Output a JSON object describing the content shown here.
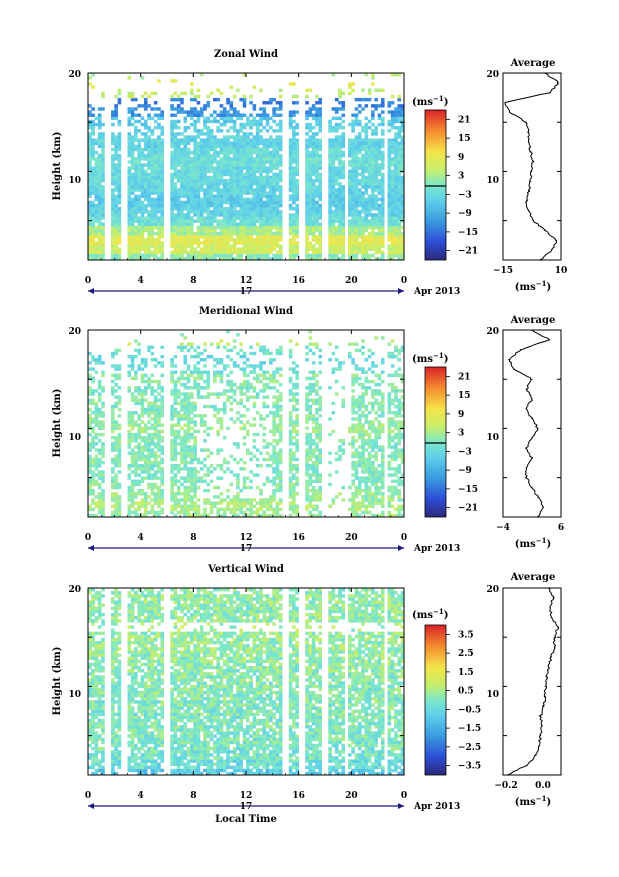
{
  "chart_data": [
    {
      "type": "heatmap",
      "title": "Zonal Wind",
      "ylabel": "Height (km)",
      "ylim": [
        1,
        20
      ],
      "xlim": [
        0,
        24
      ],
      "x_ticks": [
        "0",
        "4",
        "8",
        "12",
        "16",
        "20",
        "0"
      ],
      "y_ticks": [
        "20",
        "10"
      ],
      "day_label": "17",
      "date_label": "Apr 2013",
      "colorbar": {
        "unit": "(ms",
        "unit_exp": "−1",
        "unit_close": ")",
        "ticks": [
          "21",
          "15",
          "9",
          "3",
          "−3",
          "−9",
          "−15",
          "−21"
        ],
        "range": [
          -24,
          24
        ]
      },
      "average_profile": {
        "title": "Average",
        "xlabel": "(ms",
        "x_ticks": [
          "−15",
          "10"
        ],
        "xlim": [
          -15,
          10
        ],
        "y_ticks": [
          "20",
          "10"
        ],
        "height_km": [
          1,
          2,
          3,
          4,
          5,
          6,
          7,
          8,
          9,
          10,
          11,
          12,
          13,
          14,
          15,
          16,
          17,
          18,
          19,
          20
        ],
        "values": [
          1,
          6,
          8,
          3,
          -2,
          -4,
          -5,
          -4,
          -3,
          -3,
          -2,
          -3,
          -4,
          -4,
          -5,
          -12,
          -14,
          5,
          9,
          3
        ]
      }
    },
    {
      "type": "heatmap",
      "title": "Meridional Wind",
      "ylabel": "Height (km)",
      "ylim": [
        1,
        20
      ],
      "xlim": [
        0,
        24
      ],
      "x_ticks": [
        "0",
        "4",
        "8",
        "12",
        "16",
        "20",
        "0"
      ],
      "y_ticks": [
        "20",
        "10"
      ],
      "day_label": "17",
      "date_label": "Apr 2013",
      "colorbar": {
        "unit": "(ms",
        "unit_exp": "−1",
        "unit_close": ")",
        "ticks": [
          "21",
          "15",
          "9",
          "3",
          "−3",
          "−9",
          "−15",
          "−21"
        ],
        "range": [
          -24,
          24
        ]
      },
      "average_profile": {
        "title": "Average",
        "xlabel": "(ms",
        "x_ticks": [
          "−4",
          "6"
        ],
        "xlim": [
          -4,
          6
        ],
        "y_ticks": [
          "20",
          "10"
        ],
        "height_km": [
          1,
          2,
          3,
          4,
          5,
          6,
          7,
          8,
          9,
          10,
          11,
          12,
          13,
          14,
          15,
          16,
          17,
          18,
          19,
          20
        ],
        "values": [
          2,
          3,
          2,
          1,
          0,
          0,
          1,
          0,
          1,
          2,
          1,
          0,
          1,
          0,
          1,
          -2,
          -3,
          -1,
          4,
          1
        ]
      }
    },
    {
      "type": "heatmap",
      "title": "Vertical Wind",
      "ylabel": "Height (km)",
      "ylim": [
        1,
        20
      ],
      "xlim": [
        0,
        24
      ],
      "x_ticks": [
        "0",
        "4",
        "8",
        "12",
        "16",
        "20",
        "0"
      ],
      "y_ticks": [
        "20",
        "10"
      ],
      "day_label": "17",
      "date_label": "Apr 2013",
      "xlabel": "Local Time",
      "colorbar": {
        "unit": "(ms",
        "unit_exp": "−1",
        "unit_close": ")",
        "ticks": [
          "3.5",
          "2.5",
          "1.5",
          "0.5",
          "−0.5",
          "−1.5",
          "−2.5",
          "−3.5"
        ],
        "range": [
          -4,
          4
        ]
      },
      "average_profile": {
        "title": "Average",
        "xlabel": "(ms",
        "x_ticks": [
          "−0.2",
          "0.0"
        ],
        "xlim": [
          -0.25,
          0.12
        ],
        "y_ticks": [
          "20",
          "10"
        ],
        "height_km": [
          1,
          2,
          3,
          4,
          5,
          6,
          7,
          8,
          9,
          10,
          11,
          12,
          13,
          14,
          15,
          16,
          17,
          18,
          19,
          20
        ],
        "values": [
          -0.22,
          -0.1,
          -0.04,
          -0.02,
          -0.01,
          0.0,
          -0.01,
          0.01,
          0.02,
          0.02,
          0.03,
          0.04,
          0.06,
          0.08,
          0.08,
          0.1,
          0.06,
          0.05,
          0.07,
          0.04
        ]
      }
    }
  ]
}
